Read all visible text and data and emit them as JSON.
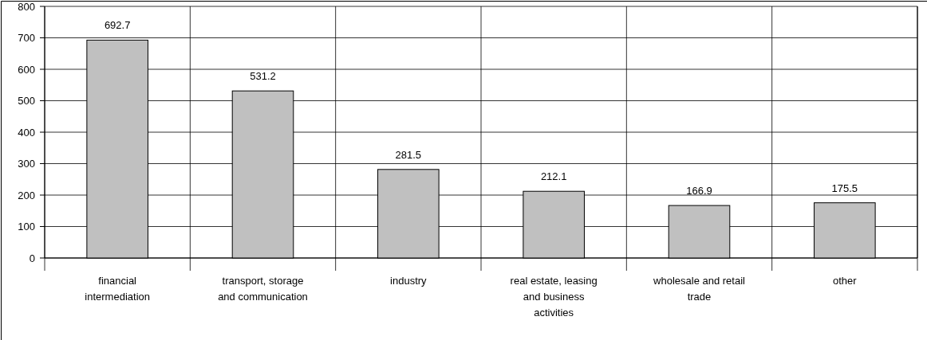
{
  "chart_data": {
    "type": "bar",
    "categories": [
      "financial intermediation",
      "transport, storage and communication",
      "industry",
      "real estate, leasing and business activities",
      "wholesale and retail trade",
      "other"
    ],
    "values": [
      692.7,
      531.2,
      281.5,
      212.1,
      166.9,
      175.5
    ],
    "color": "#c0c0c0",
    "ylim": [
      0,
      800
    ],
    "yticks": [
      0,
      100,
      200,
      300,
      400,
      500,
      600,
      700,
      800
    ],
    "grid": true,
    "data_labels": true
  }
}
